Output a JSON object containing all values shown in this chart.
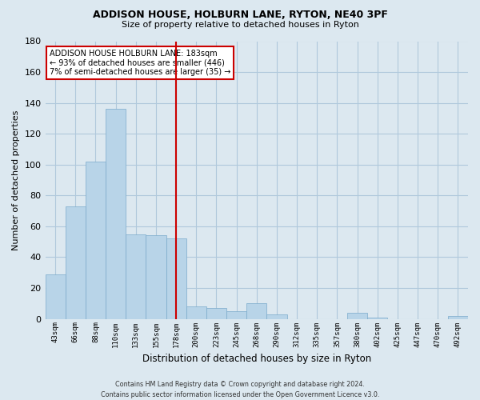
{
  "title": "ADDISON HOUSE, HOLBURN LANE, RYTON, NE40 3PF",
  "subtitle": "Size of property relative to detached houses in Ryton",
  "xlabel": "Distribution of detached houses by size in Ryton",
  "ylabel": "Number of detached properties",
  "bar_color": "#b8d4e8",
  "bar_edge_color": "#7aaaca",
  "vline_x": 6,
  "vline_color": "#cc0000",
  "annotation_text": "ADDISON HOUSE HOLBURN LANE: 183sqm\n← 93% of detached houses are smaller (446)\n7% of semi-detached houses are larger (35) →",
  "annotation_box_color": "#ffffff",
  "annotation_box_edge": "#cc0000",
  "footnote": "Contains HM Land Registry data © Crown copyright and database right 2024.\nContains public sector information licensed under the Open Government Licence v3.0.",
  "bin_labels": [
    "43sqm",
    "66sqm",
    "88sqm",
    "110sqm",
    "133sqm",
    "155sqm",
    "178sqm",
    "200sqm",
    "223sqm",
    "245sqm",
    "268sqm",
    "290sqm",
    "312sqm",
    "335sqm",
    "357sqm",
    "380sqm",
    "402sqm",
    "425sqm",
    "447sqm",
    "470sqm",
    "492sqm"
  ],
  "counts": [
    29,
    73,
    102,
    136,
    55,
    54,
    52,
    8,
    7,
    5,
    10,
    3,
    0,
    0,
    0,
    4,
    1,
    0,
    0,
    0,
    2
  ],
  "ylim": [
    0,
    180
  ],
  "yticks": [
    0,
    20,
    40,
    60,
    80,
    100,
    120,
    140,
    160,
    180
  ],
  "page_bg_color": "#dce8f0",
  "plot_bg_color": "#dce8f0",
  "grid_color": "#b0c8dc",
  "title_color": "#000000",
  "footnote_color": "#333333"
}
